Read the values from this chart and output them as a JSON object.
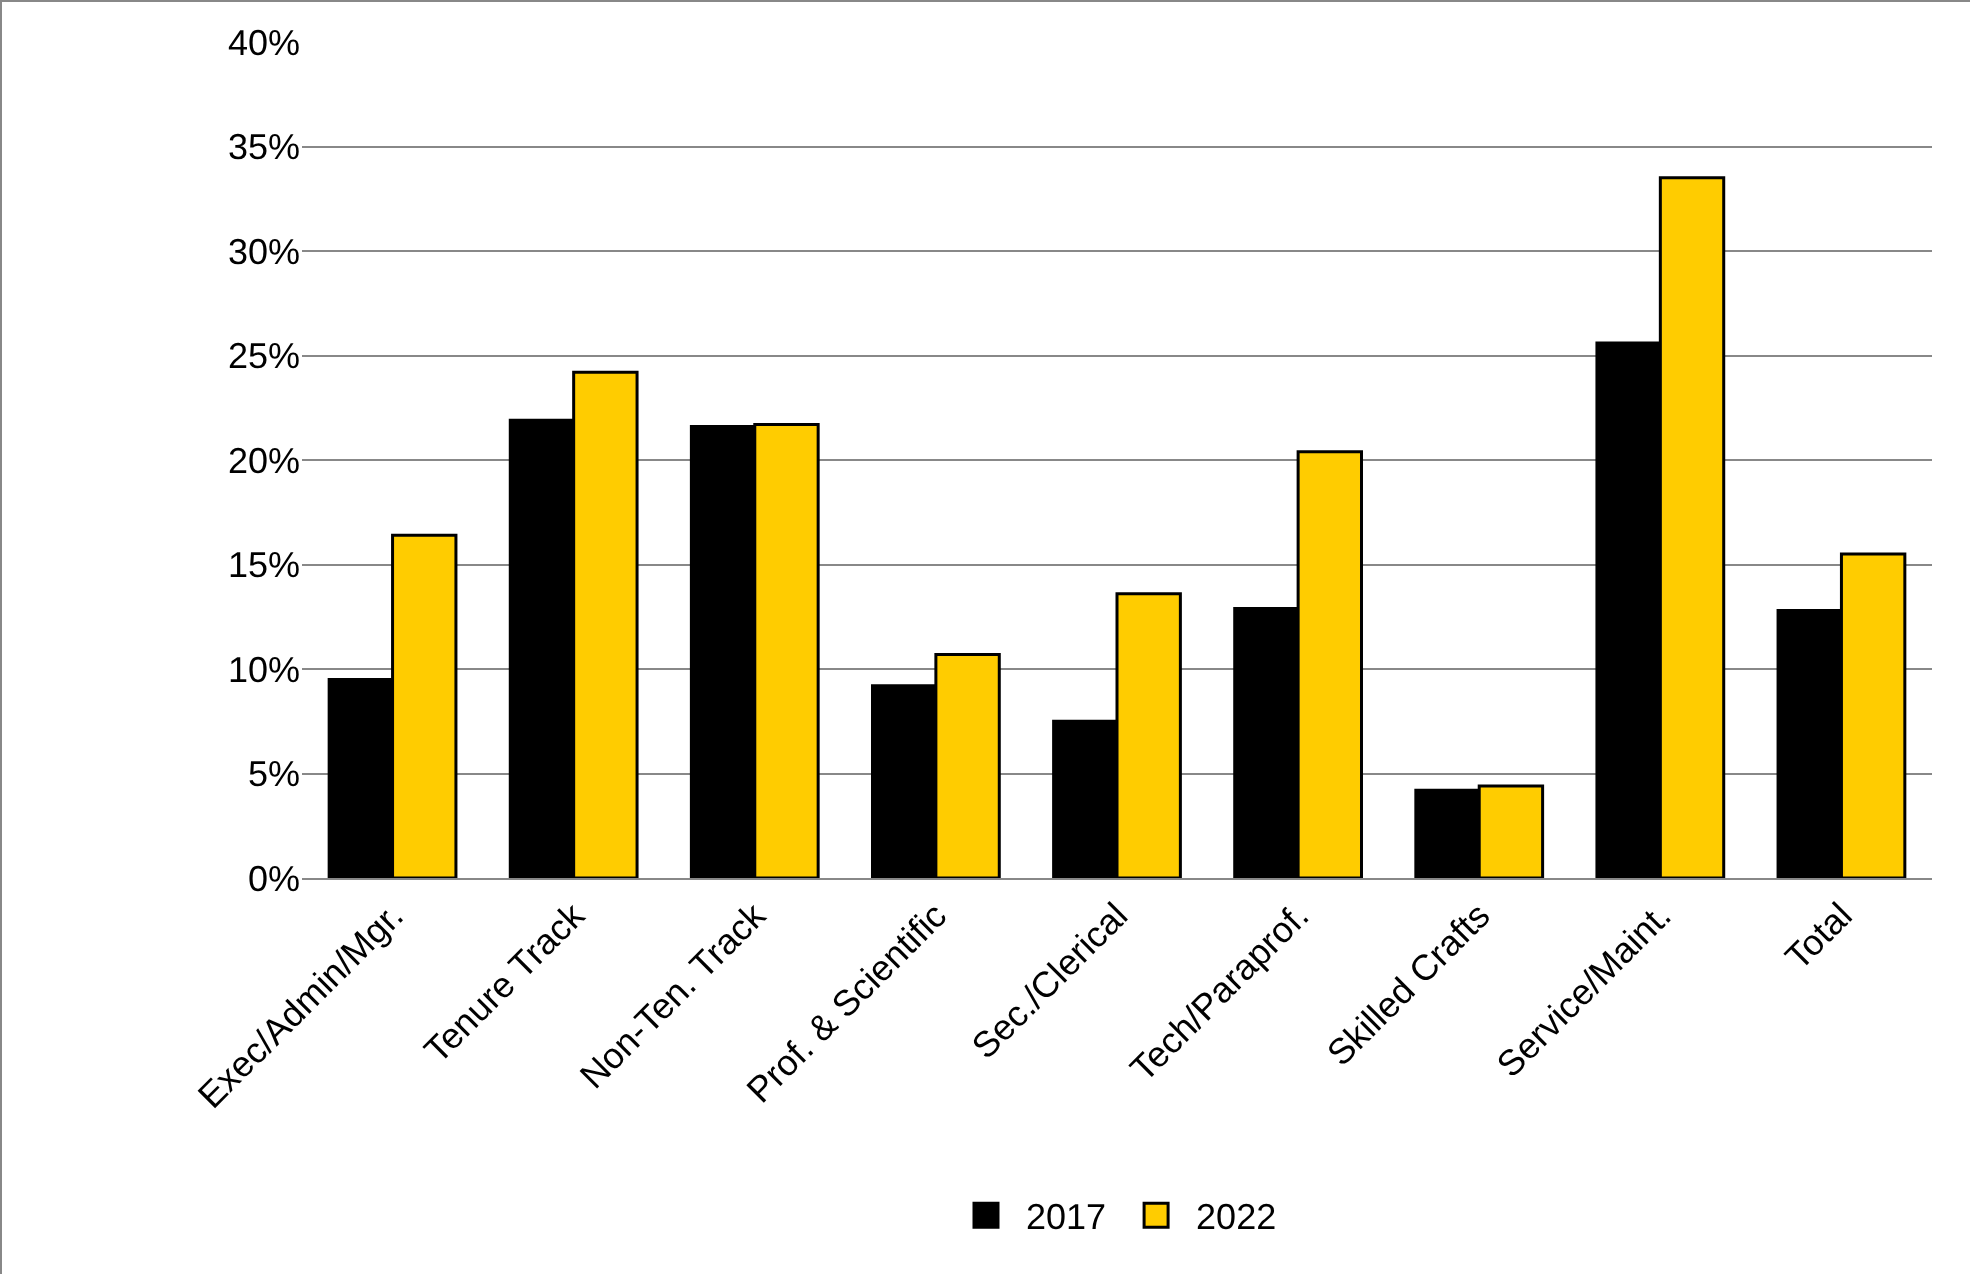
{
  "chart_data": {
    "type": "bar",
    "categories": [
      "Exec/Admin/Mgr.",
      "Tenure Track",
      "Non-Ten. Track",
      "Prof. & Scientific",
      "Sec./Clerical",
      "Tech/Paraprof.",
      "Skilled Crafts",
      "Service/Maint.",
      "Total"
    ],
    "series": [
      {
        "name": "2017",
        "color": "#000000",
        "values": [
          9.5,
          21.9,
          21.6,
          9.2,
          7.5,
          12.9,
          4.2,
          25.6,
          12.8
        ]
      },
      {
        "name": "2022",
        "color": "#ffcc00",
        "values": [
          16.4,
          24.2,
          21.7,
          10.7,
          13.6,
          20.4,
          4.4,
          33.5,
          15.5
        ]
      }
    ],
    "ylim": [
      0,
      40
    ],
    "yticks": [
      {
        "value": 0,
        "label": "0%"
      },
      {
        "value": 5,
        "label": "5%"
      },
      {
        "value": 10,
        "label": "10%"
      },
      {
        "value": 15,
        "label": "15%"
      },
      {
        "value": 20,
        "label": "20%"
      },
      {
        "value": 25,
        "label": "25%"
      },
      {
        "value": 30,
        "label": "30%"
      },
      {
        "value": 35,
        "label": "35%"
      },
      {
        "value": 40,
        "label": "40%"
      }
    ],
    "grid": "y",
    "legend": "bottom"
  }
}
